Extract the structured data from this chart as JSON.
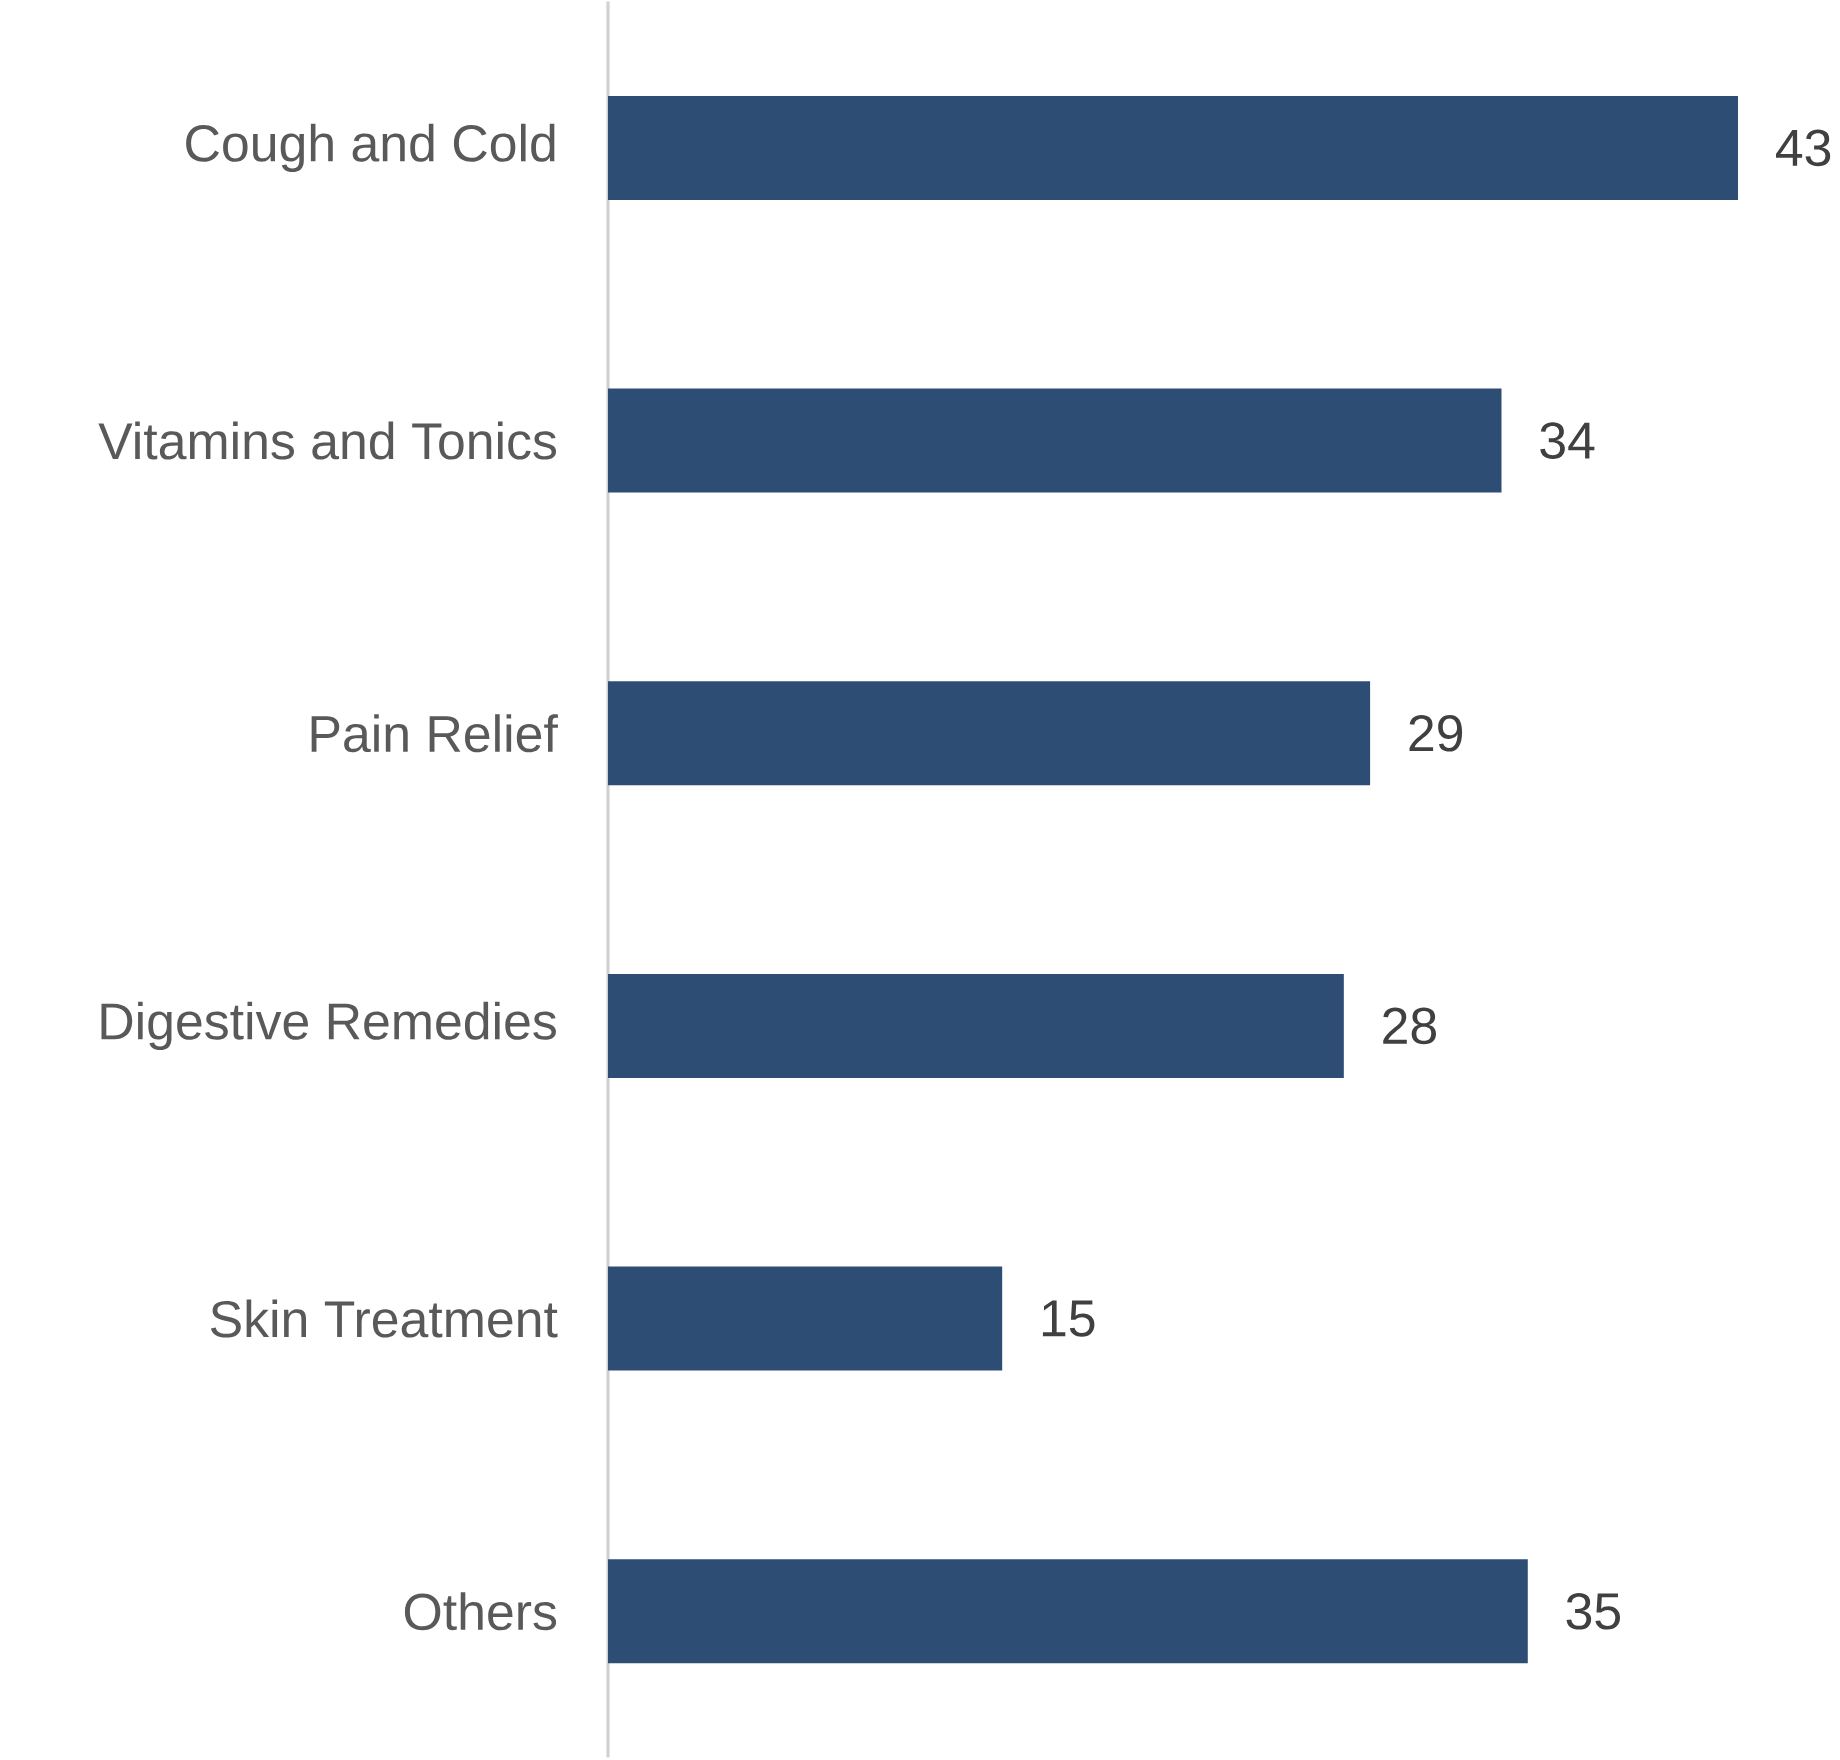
{
  "chart_data": {
    "type": "bar",
    "orientation": "horizontal",
    "categories": [
      "Cough and Cold",
      "Vitamins and Tonics",
      "Pain Relief",
      "Digestive Remedies",
      "Skin Treatment",
      "Others"
    ],
    "values": [
      43,
      34,
      29,
      28,
      15,
      35
    ],
    "color": "#2e4d75",
    "data_labels": true,
    "grid": false,
    "legend": false
  }
}
